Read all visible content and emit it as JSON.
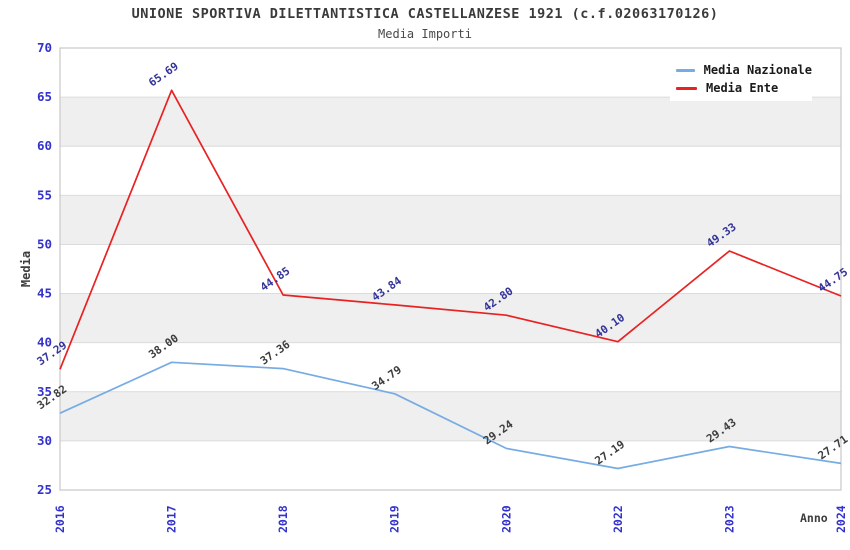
{
  "chart_data": {
    "type": "line",
    "title": "UNIONE SPORTIVA DILETTANTISTICA CASTELLANZESE 1921 (c.f.02063170126)",
    "subtitle": "Media Importi",
    "xlabel": "Anno",
    "ylabel": "Media",
    "ylim": [
      25,
      70
    ],
    "ytick_step": 5,
    "yticks": [
      25,
      30,
      35,
      40,
      45,
      50,
      55,
      60,
      65,
      70
    ],
    "categories": [
      "2016",
      "2017",
      "2018",
      "2019",
      "2020",
      "2022",
      "2023",
      "2024"
    ],
    "series": [
      {
        "name": "Media Nazionale",
        "color": "#76ace3",
        "label_color": "#3d3d3d",
        "values": [
          32.82,
          38.0,
          37.36,
          34.79,
          29.24,
          27.19,
          29.43,
          27.71
        ]
      },
      {
        "name": "Media Ente",
        "color": "#e82222",
        "label_color": "#333399",
        "values": [
          37.29,
          65.69,
          44.85,
          43.84,
          42.8,
          40.1,
          49.33,
          44.75
        ]
      }
    ],
    "legend_position": "top-right",
    "grid": "horizontal-bands",
    "colors": {
      "tick_label": "#3333cc",
      "band_fill": "#efefef",
      "gridline": "#dcdcdc",
      "plot_border": "#c8c8c8",
      "title_text": "#3a3a3a",
      "subtitle_text": "#4a4a4a",
      "axis_label_text": "#3d3d3d",
      "legend_bg": "#ffffff",
      "background": "#ffffff"
    }
  }
}
